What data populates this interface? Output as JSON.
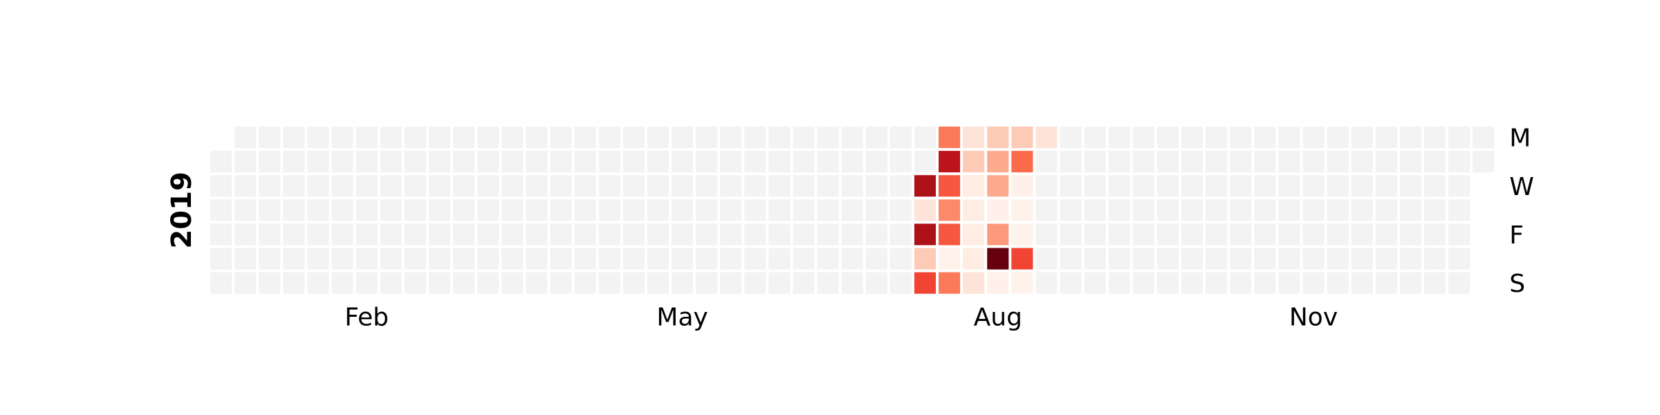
{
  "chart_data": {
    "type": "heatmap",
    "year_label": "2019",
    "x_tick_labels": [
      "Feb",
      "May",
      "Aug",
      "Nov"
    ],
    "y_tick_labels": [
      "M",
      "W",
      "F",
      "S"
    ],
    "x_ticks": [
      {
        "label": "Feb",
        "week": 6.5
      },
      {
        "label": "May",
        "week": 19.5
      },
      {
        "label": "Aug",
        "week": 32.5
      },
      {
        "label": "Nov",
        "week": 45.5
      }
    ],
    "y_ticks": [
      {
        "label": "M",
        "weekday": 0
      },
      {
        "label": "W",
        "weekday": 2
      },
      {
        "label": "F",
        "weekday": 4
      },
      {
        "label": "S",
        "weekday": 6
      }
    ],
    "start_date": "2019-01-01",
    "end_date": "2019-12-31",
    "colormap": "Reds",
    "empty_color": "#f3f3f3",
    "vmin": 0,
    "vmax": 1,
    "values": {
      "2019-07-29": 0.45,
      "2019-07-30": 0.8,
      "2019-07-31": 0.55,
      "2019-08-01": 0.4,
      "2019-08-02": 0.55,
      "2019-08-03": 0.02,
      "2019-08-04": 0.45,
      "2019-08-05": 0.1,
      "2019-08-06": 0.2,
      "2019-08-07": 0.05,
      "2019-08-08": 0.05,
      "2019-08-09": 0.05,
      "2019-08-10": 0.05,
      "2019-08-11": 0.1,
      "2019-08-12": 0.2,
      "2019-08-13": 0.3,
      "2019-08-14": 0.3,
      "2019-08-15": 0.03,
      "2019-08-16": 0.35,
      "2019-08-17": 1.0,
      "2019-08-18": 0.03,
      "2019-08-19": 0.2,
      "2019-08-20": 0.5,
      "2019-08-21": 0.03,
      "2019-08-22": 0.02,
      "2019-08-23": 0.02,
      "2019-08-24": 0.6,
      "2019-08-25": 0.02,
      "2019-08-26": 0.1,
      "2019-07-24": 0.85,
      "2019-07-25": 0.1,
      "2019-07-26": 0.85,
      "2019-07-27": 0.2,
      "2019-07-28": 0.6
    }
  }
}
